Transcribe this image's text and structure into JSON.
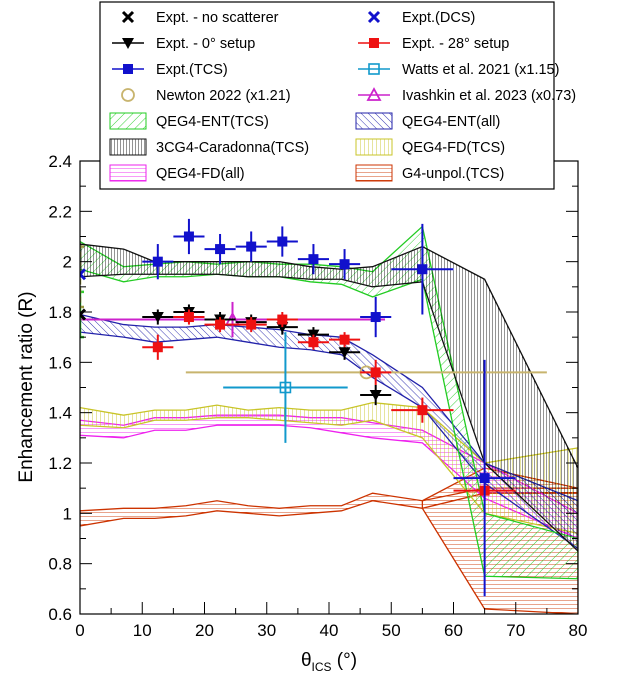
{
  "chart_data": {
    "type": "scatter",
    "xlabel": "θ_ICS (°)",
    "xlabel_main": "θ",
    "xlabel_sub": "ICS",
    "xlabel_unit": " (°)",
    "ylabel": "Enhancement ratio (R)",
    "xlim": [
      0,
      80
    ],
    "ylim": [
      0.6,
      2.4
    ],
    "xticks": [
      "0",
      "10",
      "20",
      "30",
      "40",
      "50",
      "60",
      "70",
      "80"
    ],
    "yticks": [
      "0.6",
      "0.8",
      "1",
      "1.2",
      "1.4",
      "1.6",
      "1.8",
      "2",
      "2.2",
      "2.4"
    ],
    "legend": [
      {
        "key": "no_scat",
        "label": "Expt. - no scatterer",
        "color": "#000000",
        "marker": "x"
      },
      {
        "key": "dcs",
        "label": "Expt.(DCS)",
        "color": "#1111cc",
        "marker": "x"
      },
      {
        "key": "zero",
        "label": "Expt. - 0° setup",
        "color": "#000000",
        "marker": "triangle-down"
      },
      {
        "key": "e28",
        "label": "Expt. - 28° setup",
        "color": "#ee1111",
        "marker": "square"
      },
      {
        "key": "tcs",
        "label": "Expt.(TCS)",
        "color": "#1111cc",
        "marker": "square"
      },
      {
        "key": "watts",
        "label": "Watts et al. 2021 (x1.15)",
        "color": "#1199cc",
        "marker": "open-square"
      },
      {
        "key": "newton",
        "label": "Newton 2022 (x1.21)",
        "color": "#c8b46e",
        "marker": "open-circle"
      },
      {
        "key": "ivashkin",
        "label": "Ivashkin et al. 2023 (x0.73)",
        "color": "#cc22cc",
        "marker": "open-triangle"
      },
      {
        "key": "qeg_ent_tcs",
        "label": "QEG4-ENT(TCS)",
        "color": "#22cc22",
        "marker": "band"
      },
      {
        "key": "qeg_ent_all",
        "label": "QEG4-ENT(all)",
        "color": "#2222aa",
        "marker": "band"
      },
      {
        "key": "caradonna",
        "label": "3CG4-Caradonna(TCS)",
        "color": "#111111",
        "marker": "band"
      },
      {
        "key": "qeg_fd_tcs",
        "label": "QEG4-FD(TCS)",
        "color": "#c8c428",
        "marker": "band"
      },
      {
        "key": "qeg_fd_all",
        "label": "QEG4-FD(all)",
        "color": "#ee22ee",
        "marker": "band"
      },
      {
        "key": "g4_unpol",
        "label": "G4-unpol.(TCS)",
        "color": "#cc3300",
        "marker": "band"
      }
    ],
    "bands": [
      {
        "name": "G4-unpol.(TCS)",
        "color": "#cc3300",
        "x": [
          0,
          7,
          12,
          17,
          22,
          27,
          32,
          37,
          42,
          47,
          55,
          65,
          80
        ],
        "y_low": [
          0.95,
          0.98,
          0.98,
          0.99,
          1.01,
          1.0,
          0.99,
          1.0,
          1.01,
          1.05,
          1.02,
          1.08,
          1.08
        ],
        "y_high": [
          1.01,
          1.02,
          1.02,
          1.03,
          1.05,
          1.03,
          1.02,
          1.03,
          1.03,
          1.08,
          1.05,
          1.1,
          1.1
        ],
        "tail_low": [
          [
            55,
            1.02
          ],
          [
            65,
            0.62
          ],
          [
            80,
            0.6
          ]
        ],
        "tail_high": [
          [
            55,
            1.05
          ],
          [
            65,
            1.18
          ],
          [
            80,
            1.1
          ]
        ]
      },
      {
        "name": "QEG4-FD(all)",
        "color": "#ee22ee",
        "x": [
          0,
          7,
          12,
          17,
          22,
          27,
          32,
          37,
          42,
          47,
          55,
          65,
          80
        ],
        "y_low": [
          1.31,
          1.3,
          1.33,
          1.33,
          1.35,
          1.35,
          1.35,
          1.34,
          1.32,
          1.3,
          1.28,
          1.06,
          0.9
        ],
        "y_high": [
          1.37,
          1.35,
          1.38,
          1.38,
          1.39,
          1.39,
          1.39,
          1.38,
          1.38,
          1.36,
          1.33,
          1.2,
          1.0
        ]
      },
      {
        "name": "QEG4-FD(TCS)",
        "color": "#c8c428",
        "x": [
          0,
          7,
          12,
          17,
          22,
          27,
          32,
          37,
          42,
          47,
          55,
          65,
          80
        ],
        "y_low": [
          1.35,
          1.34,
          1.37,
          1.37,
          1.38,
          1.38,
          1.37,
          1.36,
          1.35,
          1.37,
          1.3,
          1.0,
          0.92
        ],
        "y_high": [
          1.42,
          1.39,
          1.41,
          1.41,
          1.43,
          1.41,
          1.42,
          1.41,
          1.41,
          1.44,
          1.42,
          1.2,
          1.26
        ]
      },
      {
        "name": "QEG4-ENT(all)",
        "color": "#2222aa",
        "x": [
          0,
          7,
          12,
          17,
          22,
          27,
          32,
          37,
          42,
          47,
          55,
          65,
          80
        ],
        "y_low": [
          1.72,
          1.7,
          1.68,
          1.69,
          1.7,
          1.68,
          1.66,
          1.65,
          1.63,
          1.54,
          1.42,
          1.12,
          0.86
        ],
        "y_high": [
          1.79,
          1.75,
          1.74,
          1.74,
          1.75,
          1.74,
          1.73,
          1.71,
          1.7,
          1.63,
          1.5,
          1.2,
          1.05
        ]
      },
      {
        "name": "QEG4-ENT(TCS)",
        "color": "#22cc22",
        "x": [
          0,
          7,
          12,
          17,
          22,
          27,
          32,
          37,
          42,
          47,
          55,
          65,
          80
        ],
        "y_low": [
          1.97,
          1.92,
          1.94,
          1.94,
          1.95,
          1.94,
          1.94,
          1.92,
          1.91,
          1.86,
          1.93,
          0.75,
          0.74
        ],
        "y_high": [
          2.08,
          1.98,
          1.99,
          2.0,
          1.99,
          2.0,
          1.99,
          1.99,
          1.98,
          1.96,
          2.14,
          1.0,
          0.9
        ]
      },
      {
        "name": "3CG4-Caradonna(TCS)",
        "color": "#111111",
        "x": [
          0,
          7,
          12,
          17,
          22,
          27,
          32,
          37,
          42,
          47,
          55,
          65,
          80
        ],
        "y_low": [
          1.94,
          1.95,
          1.95,
          1.95,
          1.95,
          1.94,
          1.94,
          1.93,
          1.93,
          1.9,
          1.92,
          1.2,
          0.85
        ],
        "y_high": [
          2.07,
          2.05,
          2.0,
          2.0,
          2.0,
          2.0,
          2.0,
          1.98,
          1.97,
          1.98,
          2.06,
          1.93,
          1.18
        ]
      }
    ],
    "points": {
      "tcs": {
        "color": "#1111cc",
        "x": [
          12.5,
          17.5,
          22.5,
          27.5,
          32.5,
          37.5,
          42.5,
          47.5,
          55,
          65
        ],
        "y": [
          2.0,
          2.1,
          2.05,
          2.06,
          2.08,
          2.01,
          1.99,
          1.78,
          1.97,
          1.14
        ],
        "xerr": [
          2.5,
          2.5,
          2.5,
          2.5,
          2.5,
          2.5,
          2.5,
          2.5,
          5,
          5
        ],
        "yerr": [
          0.07,
          0.07,
          0.06,
          0.06,
          0.06,
          0.06,
          0.06,
          0.08,
          0.18,
          0.47
        ]
      },
      "zero": {
        "color": "#000000",
        "x": [
          12.5,
          17.5,
          22.5,
          27.5,
          32.5,
          37.5,
          42.5,
          47.5
        ],
        "y": [
          1.78,
          1.8,
          1.77,
          1.76,
          1.74,
          1.71,
          1.64,
          1.47
        ],
        "xerr": [
          2.5,
          2.5,
          2.5,
          2.5,
          2.5,
          2.5,
          2.5,
          2.5
        ],
        "yerr": [
          0.03,
          0.03,
          0.03,
          0.03,
          0.03,
          0.03,
          0.03,
          0.04
        ]
      },
      "e28": {
        "color": "#ee1111",
        "x": [
          12.5,
          17.5,
          22.5,
          27.5,
          32.5,
          37.5,
          42.5,
          47.5,
          55,
          65
        ],
        "y": [
          1.66,
          1.78,
          1.75,
          1.75,
          1.77,
          1.68,
          1.69,
          1.56,
          1.41,
          1.09
        ],
        "xerr": [
          2.5,
          2.5,
          2.5,
          2.5,
          2.5,
          2.5,
          2.5,
          2.5,
          5,
          5
        ],
        "yerr": [
          0.05,
          0.03,
          0.03,
          0.03,
          0.03,
          0.03,
          0.03,
          0.05,
          0.05,
          0.04
        ]
      },
      "watts": {
        "color": "#1199cc",
        "x": [
          33
        ],
        "y": [
          1.5
        ],
        "xerr": [
          10
        ],
        "yerr": [
          0.22
        ]
      },
      "newton": {
        "color": "#c8b46e",
        "x": [
          46
        ],
        "y": [
          1.56
        ],
        "xerr": [
          29
        ],
        "yerr": [
          0.0
        ]
      },
      "ivashkin": {
        "color": "#cc22cc",
        "x": [
          24.5
        ],
        "y": [
          1.77
        ],
        "xerr": [
          24.5
        ],
        "yerr": [
          0.07
        ]
      },
      "no_scat": {
        "color": "#000000",
        "x": [
          0
        ],
        "y": [
          1.79
        ],
        "band": [
          1.7,
          1.88
        ],
        "band_color": "#33cc33"
      },
      "dcs": {
        "color": "#1111cc",
        "x": [
          0
        ],
        "y": [
          1.95
        ],
        "band": [
          1.82,
          2.06
        ],
        "band_color": "#999944"
      }
    }
  }
}
